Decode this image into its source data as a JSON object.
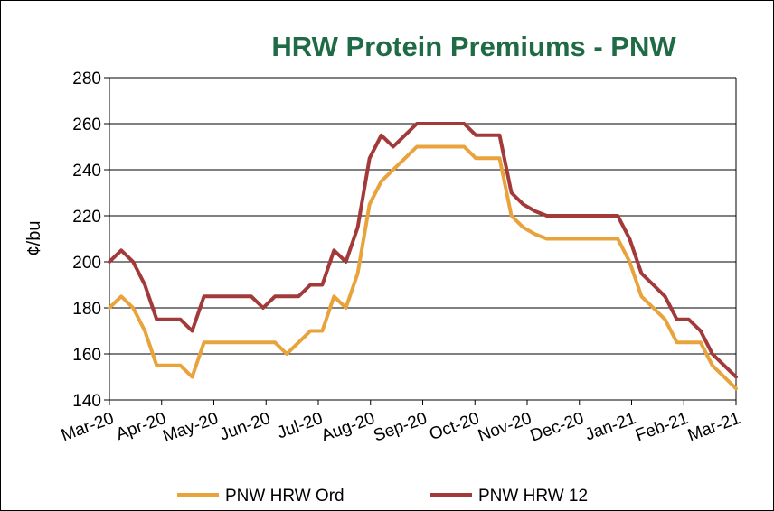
{
  "chart_data": {
    "type": "line",
    "title": "HRW Protein Premiums  - PNW",
    "ylabel": "¢/bu",
    "ylim": [
      140,
      280
    ],
    "yticks": [
      140,
      160,
      180,
      200,
      220,
      240,
      260,
      280
    ],
    "xlabels": [
      "Mar-20",
      "Apr-20",
      "May-20",
      "Jun-20",
      "Jul-20",
      "Aug-20",
      "Sep-20",
      "Oct-20",
      "Nov-20",
      "Dec-20",
      "Jan-21",
      "Feb-21",
      "Mar-21"
    ],
    "grid": true,
    "legend_position": "bottom",
    "series": [
      {
        "name": "PNW HRW Ord",
        "color": "#e8a33d",
        "values": [
          180,
          185,
          180,
          170,
          155,
          155,
          155,
          150,
          165,
          165,
          165,
          165,
          165,
          165,
          165,
          160,
          165,
          170,
          170,
          185,
          180,
          195,
          225,
          235,
          240,
          245,
          250,
          250,
          250,
          250,
          250,
          245,
          245,
          245,
          220,
          215,
          212,
          210,
          210,
          210,
          210,
          210,
          210,
          210,
          200,
          185,
          180,
          175,
          165,
          165,
          165,
          155,
          150,
          145
        ]
      },
      {
        "name": "PNW HRW 12",
        "color": "#a33a3a",
        "values": [
          200,
          205,
          200,
          190,
          175,
          175,
          175,
          170,
          185,
          185,
          185,
          185,
          185,
          180,
          185,
          185,
          185,
          190,
          190,
          205,
          200,
          215,
          245,
          255,
          250,
          255,
          260,
          260,
          260,
          260,
          260,
          255,
          255,
          255,
          230,
          225,
          222,
          220,
          220,
          220,
          220,
          220,
          220,
          220,
          210,
          195,
          190,
          185,
          175,
          175,
          170,
          160,
          155,
          150
        ]
      }
    ]
  }
}
